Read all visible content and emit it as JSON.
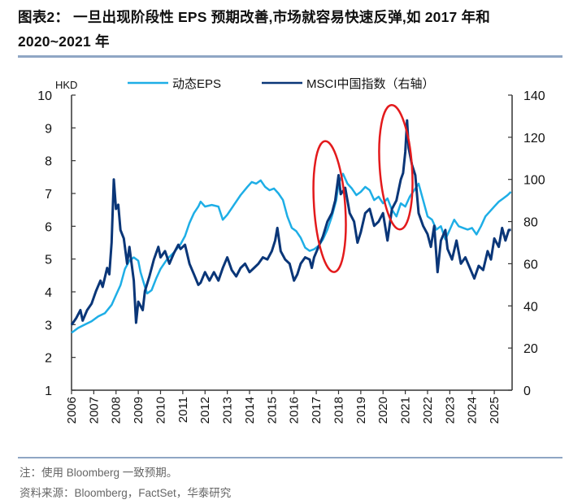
{
  "header": {
    "title": "图表2： 一旦出现阶段性 EPS 预期改善,市场就容易快速反弹,如 2017 年和 2020~2021 年"
  },
  "footer": {
    "note": "注：使用 Bloomberg 一致预期。",
    "source": "资料来源：Bloomberg，FactSet，华泰研究"
  },
  "chart_data": {
    "type": "line",
    "title": "",
    "xlabel": "",
    "left_axis": {
      "unit": "HKD",
      "ylim": [
        1,
        10
      ],
      "ticks": [
        "1",
        "2",
        "3",
        "4",
        "5",
        "6",
        "7",
        "8",
        "9",
        "10"
      ]
    },
    "right_axis": {
      "ylim": [
        0,
        140
      ],
      "ticks": [
        "0",
        "20",
        "40",
        "60",
        "80",
        "100",
        "120",
        "140"
      ]
    },
    "x_ticks": [
      "2006",
      "2007",
      "2008",
      "2009",
      "2010",
      "2011",
      "2012",
      "2013",
      "2014",
      "2015",
      "2016",
      "2017",
      "2018",
      "2019",
      "2020",
      "2021",
      "2022",
      "2023",
      "2024",
      "2025"
    ],
    "xlim": [
      2006,
      2025.8
    ],
    "legend": {
      "placement": "top-center"
    },
    "annotations": [
      {
        "type": "ellipse",
        "color": "#e31a1c",
        "x_range": [
          2016.9,
          2018.3
        ],
        "left_y_range": [
          4.6,
          8.6
        ],
        "label": "2017"
      },
      {
        "type": "ellipse",
        "color": "#e31a1c",
        "x_range": [
          2019.85,
          2021.3
        ],
        "left_y_range": [
          5.9,
          9.7
        ],
        "label": "2020~2021"
      }
    ],
    "series": [
      {
        "name": "动态EPS",
        "axis": "left",
        "color": "#1eaee6",
        "points": [
          [
            2006.0,
            2.75
          ],
          [
            2006.3,
            2.9
          ],
          [
            2006.6,
            3.0
          ],
          [
            2006.9,
            3.1
          ],
          [
            2007.2,
            3.25
          ],
          [
            2007.5,
            3.35
          ],
          [
            2007.8,
            3.6
          ],
          [
            2008.0,
            3.9
          ],
          [
            2008.2,
            4.2
          ],
          [
            2008.4,
            4.7
          ],
          [
            2008.6,
            4.95
          ],
          [
            2008.8,
            5.05
          ],
          [
            2009.0,
            4.95
          ],
          [
            2009.1,
            4.6
          ],
          [
            2009.3,
            4.15
          ],
          [
            2009.4,
            3.95
          ],
          [
            2009.6,
            4.05
          ],
          [
            2009.8,
            4.4
          ],
          [
            2010.0,
            4.7
          ],
          [
            2010.3,
            5.0
          ],
          [
            2010.6,
            5.2
          ],
          [
            2010.9,
            5.45
          ],
          [
            2011.1,
            5.7
          ],
          [
            2011.3,
            6.1
          ],
          [
            2011.5,
            6.4
          ],
          [
            2011.7,
            6.6
          ],
          [
            2011.8,
            6.75
          ],
          [
            2012.0,
            6.6
          ],
          [
            2012.3,
            6.65
          ],
          [
            2012.6,
            6.6
          ],
          [
            2012.8,
            6.2
          ],
          [
            2013.0,
            6.35
          ],
          [
            2013.3,
            6.65
          ],
          [
            2013.6,
            6.95
          ],
          [
            2013.9,
            7.2
          ],
          [
            2014.1,
            7.35
          ],
          [
            2014.3,
            7.3
          ],
          [
            2014.5,
            7.4
          ],
          [
            2014.7,
            7.2
          ],
          [
            2014.9,
            7.1
          ],
          [
            2015.1,
            7.15
          ],
          [
            2015.3,
            7.0
          ],
          [
            2015.5,
            6.8
          ],
          [
            2015.7,
            6.3
          ],
          [
            2015.9,
            5.95
          ],
          [
            2016.1,
            5.85
          ],
          [
            2016.3,
            5.65
          ],
          [
            2016.5,
            5.35
          ],
          [
            2016.7,
            5.25
          ],
          [
            2016.9,
            5.3
          ],
          [
            2017.1,
            5.4
          ],
          [
            2017.3,
            5.6
          ],
          [
            2017.5,
            5.9
          ],
          [
            2017.7,
            6.3
          ],
          [
            2017.9,
            6.8
          ],
          [
            2018.0,
            7.3
          ],
          [
            2018.2,
            7.6
          ],
          [
            2018.4,
            7.3
          ],
          [
            2018.6,
            7.15
          ],
          [
            2018.8,
            6.95
          ],
          [
            2019.0,
            7.05
          ],
          [
            2019.2,
            7.2
          ],
          [
            2019.4,
            7.1
          ],
          [
            2019.6,
            6.8
          ],
          [
            2019.8,
            6.9
          ],
          [
            2020.0,
            6.7
          ],
          [
            2020.2,
            6.85
          ],
          [
            2020.4,
            6.5
          ],
          [
            2020.6,
            6.3
          ],
          [
            2020.8,
            6.7
          ],
          [
            2021.0,
            6.6
          ],
          [
            2021.2,
            6.9
          ],
          [
            2021.4,
            7.1
          ],
          [
            2021.6,
            7.3
          ],
          [
            2021.8,
            6.8
          ],
          [
            2022.0,
            6.3
          ],
          [
            2022.2,
            6.2
          ],
          [
            2022.4,
            5.9
          ],
          [
            2022.6,
            6.0
          ],
          [
            2022.8,
            5.6
          ],
          [
            2023.0,
            5.9
          ],
          [
            2023.2,
            6.2
          ],
          [
            2023.4,
            6.0
          ],
          [
            2023.6,
            5.95
          ],
          [
            2023.8,
            5.9
          ],
          [
            2024.0,
            5.95
          ],
          [
            2024.2,
            5.75
          ],
          [
            2024.4,
            6.0
          ],
          [
            2024.6,
            6.3
          ],
          [
            2024.8,
            6.45
          ],
          [
            2025.0,
            6.6
          ],
          [
            2025.2,
            6.75
          ],
          [
            2025.4,
            6.85
          ],
          [
            2025.6,
            6.95
          ],
          [
            2025.75,
            7.05
          ]
        ]
      },
      {
        "name": "MSCI中国指数（右轴）",
        "axis": "right",
        "color": "#0a3678",
        "points": [
          [
            2006.0,
            31
          ],
          [
            2006.2,
            34
          ],
          [
            2006.4,
            38
          ],
          [
            2006.5,
            33
          ],
          [
            2006.7,
            38
          ],
          [
            2006.9,
            41
          ],
          [
            2007.1,
            47
          ],
          [
            2007.3,
            52
          ],
          [
            2007.4,
            49
          ],
          [
            2007.6,
            58
          ],
          [
            2007.7,
            55
          ],
          [
            2007.8,
            70
          ],
          [
            2007.9,
            100
          ],
          [
            2008.0,
            86
          ],
          [
            2008.1,
            88
          ],
          [
            2008.2,
            76
          ],
          [
            2008.35,
            72
          ],
          [
            2008.5,
            60
          ],
          [
            2008.6,
            68
          ],
          [
            2008.8,
            52
          ],
          [
            2008.9,
            32
          ],
          [
            2009.0,
            42
          ],
          [
            2009.2,
            38
          ],
          [
            2009.3,
            47
          ],
          [
            2009.5,
            54
          ],
          [
            2009.7,
            62
          ],
          [
            2009.9,
            68
          ],
          [
            2010.0,
            63
          ],
          [
            2010.2,
            66
          ],
          [
            2010.4,
            60
          ],
          [
            2010.6,
            65
          ],
          [
            2010.8,
            69
          ],
          [
            2010.9,
            67
          ],
          [
            2011.1,
            69
          ],
          [
            2011.3,
            60
          ],
          [
            2011.5,
            55
          ],
          [
            2011.7,
            50
          ],
          [
            2011.8,
            51
          ],
          [
            2012.0,
            56
          ],
          [
            2012.2,
            52
          ],
          [
            2012.4,
            56
          ],
          [
            2012.6,
            52
          ],
          [
            2012.8,
            58
          ],
          [
            2013.0,
            63
          ],
          [
            2013.2,
            57
          ],
          [
            2013.4,
            54
          ],
          [
            2013.6,
            58
          ],
          [
            2013.8,
            60
          ],
          [
            2014.0,
            56
          ],
          [
            2014.2,
            58
          ],
          [
            2014.4,
            60
          ],
          [
            2014.6,
            63
          ],
          [
            2014.8,
            62
          ],
          [
            2015.0,
            66
          ],
          [
            2015.15,
            71
          ],
          [
            2015.25,
            77
          ],
          [
            2015.4,
            66
          ],
          [
            2015.6,
            62
          ],
          [
            2015.8,
            60
          ],
          [
            2016.0,
            52
          ],
          [
            2016.15,
            55
          ],
          [
            2016.3,
            60
          ],
          [
            2016.5,
            63
          ],
          [
            2016.7,
            62
          ],
          [
            2016.8,
            58
          ],
          [
            2016.9,
            63
          ],
          [
            2017.1,
            68
          ],
          [
            2017.3,
            73
          ],
          [
            2017.5,
            80
          ],
          [
            2017.7,
            84
          ],
          [
            2017.85,
            90
          ],
          [
            2018.0,
            102
          ],
          [
            2018.1,
            93
          ],
          [
            2018.3,
            96
          ],
          [
            2018.5,
            84
          ],
          [
            2018.7,
            80
          ],
          [
            2018.85,
            70
          ],
          [
            2019.0,
            75
          ],
          [
            2019.2,
            84
          ],
          [
            2019.4,
            86
          ],
          [
            2019.6,
            78
          ],
          [
            2019.8,
            80
          ],
          [
            2020.0,
            84
          ],
          [
            2020.2,
            71
          ],
          [
            2020.4,
            86
          ],
          [
            2020.6,
            90
          ],
          [
            2020.8,
            100
          ],
          [
            2020.9,
            103
          ],
          [
            2021.0,
            113
          ],
          [
            2021.08,
            128
          ],
          [
            2021.15,
            115
          ],
          [
            2021.3,
            107
          ],
          [
            2021.45,
            102
          ],
          [
            2021.6,
            84
          ],
          [
            2021.8,
            78
          ],
          [
            2022.0,
            74
          ],
          [
            2022.15,
            68
          ],
          [
            2022.3,
            78
          ],
          [
            2022.45,
            56
          ],
          [
            2022.6,
            71
          ],
          [
            2022.8,
            76
          ],
          [
            2022.9,
            67
          ],
          [
            2023.1,
            62
          ],
          [
            2023.3,
            71
          ],
          [
            2023.5,
            60
          ],
          [
            2023.7,
            63
          ],
          [
            2023.9,
            58
          ],
          [
            2024.1,
            53
          ],
          [
            2024.3,
            59
          ],
          [
            2024.5,
            57
          ],
          [
            2024.7,
            66
          ],
          [
            2024.85,
            62
          ],
          [
            2025.0,
            72
          ],
          [
            2025.2,
            68
          ],
          [
            2025.35,
            77
          ],
          [
            2025.5,
            71
          ],
          [
            2025.65,
            76
          ],
          [
            2025.75,
            76
          ]
        ]
      }
    ]
  }
}
